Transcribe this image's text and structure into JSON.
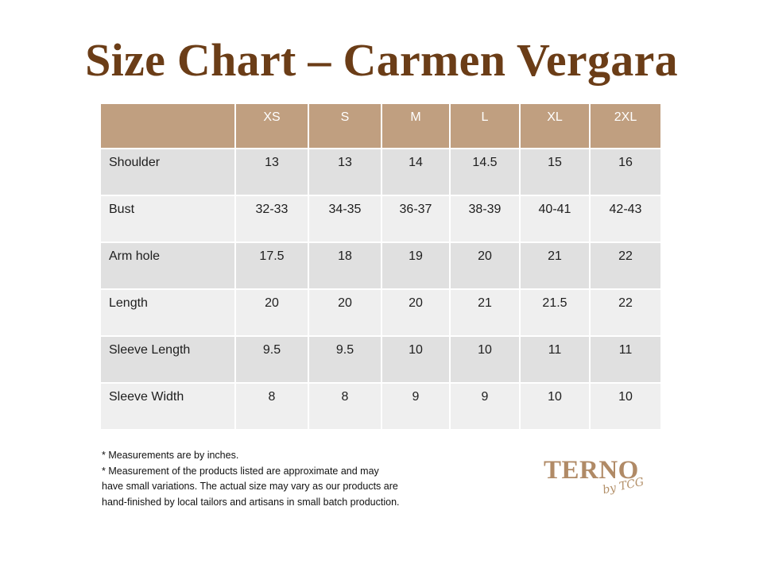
{
  "title": "Size Chart – Carmen Vergara",
  "table": {
    "headers": [
      "",
      "XS",
      "S",
      "M",
      "L",
      "XL",
      "2XL"
    ],
    "rows": [
      {
        "label": "Shoulder",
        "values": [
          "13",
          "13",
          "14",
          "14.5",
          "15",
          "16"
        ]
      },
      {
        "label": "Bust",
        "values": [
          "32-33",
          "34-35",
          "36-37",
          "38-39",
          "40-41",
          "42-43"
        ]
      },
      {
        "label": "Arm hole",
        "values": [
          "17.5",
          "18",
          "19",
          "20",
          "21",
          "22"
        ]
      },
      {
        "label": "Length",
        "values": [
          "20",
          "20",
          "20",
          "21",
          "21.5",
          "22"
        ]
      },
      {
        "label": "Sleeve Length",
        "values": [
          "9.5",
          "9.5",
          "10",
          "10",
          "11",
          "11"
        ]
      },
      {
        "label": "Sleeve Width",
        "values": [
          "8",
          "8",
          "9",
          "9",
          "10",
          "10"
        ]
      }
    ]
  },
  "notes": [
    "* Measurements are by inches.",
    "* Measurement of the products listed are approximate and may",
    "have small variations. The actual size may vary as our products are",
    "hand-finished by local tailors and artisans in small batch production."
  ],
  "logo": {
    "word": "TERNO",
    "byline": "by TCG"
  },
  "colors": {
    "title": "#6b3d17",
    "header_bg": "#c09f80",
    "row_dark": "#e0e0e0",
    "row_light": "#efefef",
    "logo": "#b08a66"
  }
}
